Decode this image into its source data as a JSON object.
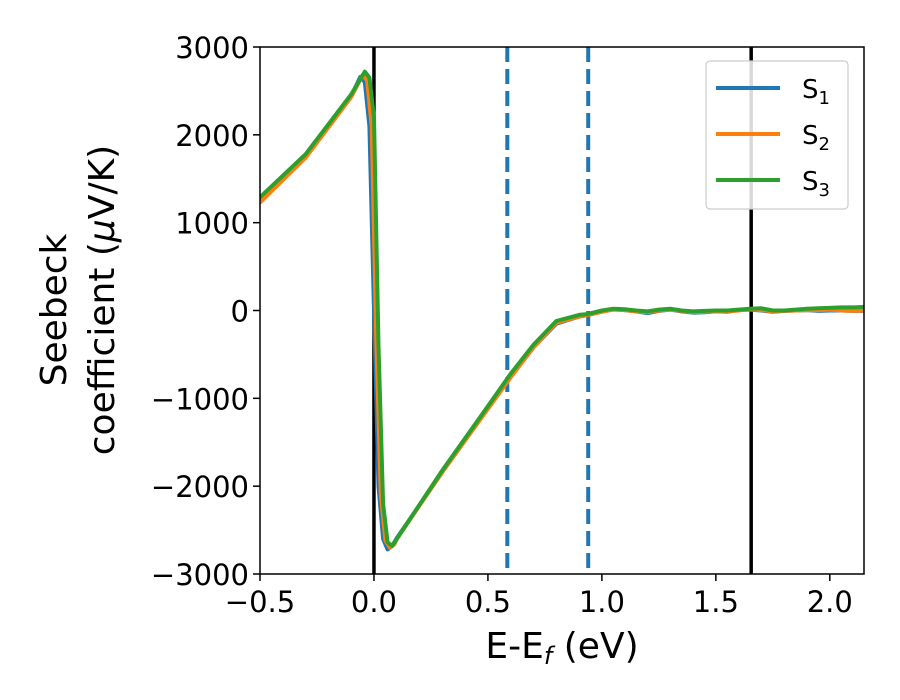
{
  "chart_data": {
    "type": "line",
    "xlabel": {
      "base": "E-E",
      "sub": "f",
      "tail": " (eV)"
    },
    "ylabel": {
      "line1": "Seebeck",
      "line2_pre": "coefficient  (",
      "mu": "μ",
      "line2_post": "V/K)"
    },
    "xlim": [
      -0.5,
      2.15
    ],
    "ylim": [
      -3000,
      3000
    ],
    "xticks": [
      -0.5,
      0.0,
      0.5,
      1.0,
      1.5,
      2.0
    ],
    "xtick_labels": [
      "−0.5",
      "0.0",
      "0.5",
      "1.0",
      "1.5",
      "2.0"
    ],
    "yticks": [
      -3000,
      -2000,
      -1000,
      0,
      1000,
      2000,
      3000
    ],
    "ytick_labels": [
      "−3000",
      "−2000",
      "−1000",
      "0",
      "1000",
      "2000",
      "3000"
    ],
    "legend_placement": "top-right",
    "grid": false,
    "vlines": [
      {
        "x": 0.0,
        "color": "#000000",
        "style": "solid"
      },
      {
        "x": 1.655,
        "color": "#000000",
        "style": "solid"
      },
      {
        "x": 0.585,
        "color": "#1f77b4",
        "style": "dashed"
      },
      {
        "x": 0.94,
        "color": "#1f77b4",
        "style": "dashed"
      }
    ],
    "series": [
      {
        "name": "S",
        "sub": "1",
        "color": "#1f77b4",
        "x": [
          -0.5,
          -0.3,
          -0.1,
          -0.06,
          -0.04,
          -0.02,
          0.0,
          0.02,
          0.04,
          0.06,
          0.08,
          0.1,
          0.3,
          0.5,
          0.6,
          0.7,
          0.8,
          0.9,
          0.94,
          1.0,
          1.05,
          1.1,
          1.15,
          1.2,
          1.25,
          1.3,
          1.35,
          1.4,
          1.45,
          1.5,
          1.55,
          1.6,
          1.65,
          1.7,
          1.75,
          1.8,
          1.85,
          1.9,
          1.95,
          2.0,
          2.05,
          2.1,
          2.15
        ],
        "y": [
          1250,
          1760,
          2440,
          2660,
          2600,
          2100,
          0,
          -2000,
          -2600,
          -2720,
          -2680,
          -2590,
          -1840,
          -1110,
          -750,
          -420,
          -150,
          -70,
          -50,
          -10,
          15,
          5,
          -10,
          -30,
          -5,
          10,
          -10,
          -25,
          -20,
          -10,
          -15,
          5,
          10,
          0,
          -15,
          -5,
          0,
          5,
          -5,
          0,
          0,
          -5,
          -5
        ]
      },
      {
        "name": "S",
        "sub": "2",
        "color": "#ff7f0e",
        "x": [
          -0.5,
          -0.3,
          -0.1,
          -0.05,
          -0.03,
          -0.01,
          0.01,
          0.03,
          0.05,
          0.07,
          0.09,
          0.1,
          0.3,
          0.5,
          0.6,
          0.7,
          0.8,
          0.9,
          0.94,
          1.0,
          1.05,
          1.1,
          1.15,
          1.2,
          1.25,
          1.3,
          1.35,
          1.4,
          1.45,
          1.5,
          1.55,
          1.6,
          1.65,
          1.7,
          1.75,
          1.8,
          1.85,
          1.9,
          1.95,
          2.0,
          2.05,
          2.1,
          2.15
        ],
        "y": [
          1230,
          1740,
          2430,
          2680,
          2620,
          2100,
          -300,
          -2100,
          -2620,
          -2700,
          -2660,
          -2600,
          -1840,
          -1120,
          -760,
          -420,
          -140,
          -70,
          -50,
          -15,
          10,
          5,
          -10,
          -20,
          0,
          10,
          -5,
          -20,
          -15,
          -10,
          -10,
          0,
          15,
          5,
          -10,
          -5,
          0,
          5,
          5,
          10,
          0,
          -5,
          0
        ]
      },
      {
        "name": "S",
        "sub": "3",
        "color": "#2ca02c",
        "x": [
          -0.5,
          -0.3,
          -0.1,
          -0.04,
          -0.02,
          0.0,
          0.02,
          0.04,
          0.06,
          0.08,
          0.1,
          0.3,
          0.5,
          0.6,
          0.7,
          0.8,
          0.9,
          0.94,
          1.0,
          1.05,
          1.1,
          1.15,
          1.2,
          1.25,
          1.3,
          1.35,
          1.4,
          1.45,
          1.5,
          1.55,
          1.6,
          1.65,
          1.7,
          1.75,
          1.8,
          1.85,
          1.9,
          1.95,
          2.0,
          2.05,
          2.1,
          2.15
        ],
        "y": [
          1290,
          1780,
          2460,
          2720,
          2650,
          2200,
          -400,
          -2200,
          -2640,
          -2680,
          -2600,
          -1820,
          -1090,
          -720,
          -390,
          -120,
          -50,
          -40,
          0,
          20,
          15,
          0,
          -10,
          10,
          20,
          0,
          -10,
          -5,
          0,
          0,
          10,
          20,
          25,
          0,
          0,
          10,
          20,
          25,
          30,
          35,
          35,
          40
        ]
      }
    ]
  }
}
